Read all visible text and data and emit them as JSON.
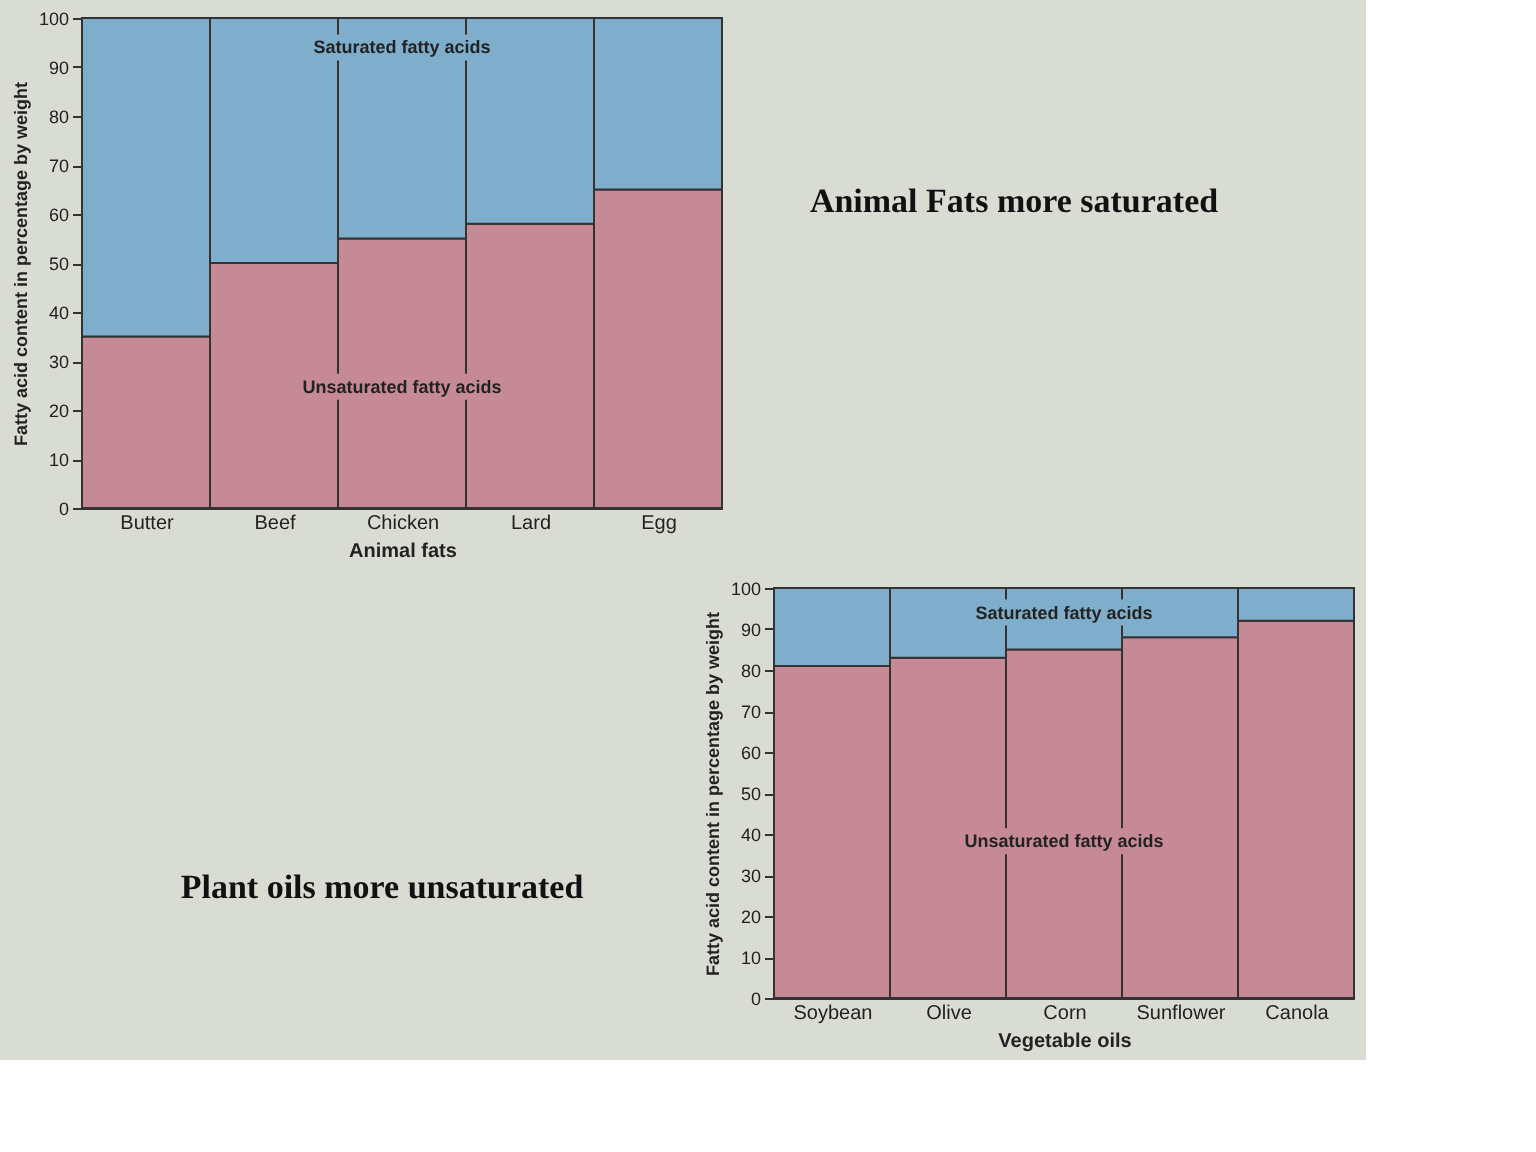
{
  "chart_data": [
    {
      "type": "bar",
      "stacked": true,
      "xlabel": "Animal fats",
      "ylabel": "Fatty acid content in percentage by weight",
      "categories": [
        "Butter",
        "Beef",
        "Chicken",
        "Lard",
        "Egg"
      ],
      "series": [
        {
          "name": "Unsaturated fatty acids",
          "color": "#c68a97",
          "values": [
            35,
            50,
            55,
            58,
            65
          ]
        },
        {
          "name": "Saturated fatty acids",
          "color": "#7eaecb",
          "values": [
            65,
            50,
            45,
            42,
            35
          ]
        }
      ],
      "ylim": [
        0,
        100
      ],
      "yticks": [
        0,
        10,
        20,
        30,
        40,
        50,
        60,
        70,
        80,
        90,
        100
      ],
      "annotations": [
        "Animal Fats more saturated"
      ]
    },
    {
      "type": "bar",
      "stacked": true,
      "xlabel": "Vegetable oils",
      "ylabel": "Fatty acid content in percentage by weight",
      "categories": [
        "Soybean",
        "Olive",
        "Corn",
        "Sunflower",
        "Canola"
      ],
      "series": [
        {
          "name": "Unsaturated fatty acids",
          "color": "#c68a97",
          "values": [
            81,
            83,
            85,
            88,
            92
          ]
        },
        {
          "name": "Saturated fatty acids",
          "color": "#7eaecb",
          "values": [
            19,
            17,
            15,
            12,
            8
          ]
        }
      ],
      "ylim": [
        0,
        100
      ],
      "yticks": [
        0,
        10,
        20,
        30,
        40,
        50,
        60,
        70,
        80,
        90,
        100
      ],
      "annotations": [
        "Plant oils more unsaturated"
      ]
    }
  ]
}
